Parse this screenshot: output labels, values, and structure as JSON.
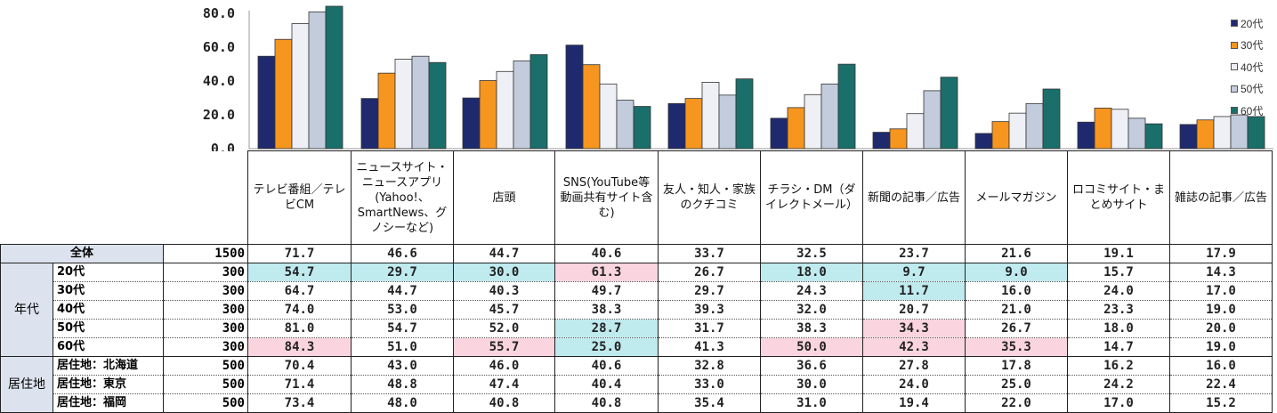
{
  "chart_data": {
    "type": "bar",
    "yticks": [
      "80.0",
      "60.0",
      "40.0",
      "20.0",
      "0.0"
    ],
    "ytick_values": [
      80,
      60,
      40,
      20,
      0
    ],
    "ylim": [
      0,
      88
    ],
    "categories": [
      "テレビ番組／テレビCM",
      "ニュースサイト・ニュースアプリ(Yahoo!、SmartNews、グノシーなど)",
      "店頭",
      "SNS(YouTube等動画共有サイト含む)",
      "友人・知人・家族のクチコミ",
      "チラシ・DM（ダイレクトメール）",
      "新聞の記事／広告",
      "メールマガジン",
      "ロコミサイト・まとめサイト",
      "雑誌の記事／広告"
    ],
    "series": [
      {
        "name": "20代",
        "color": "#1f2a6e",
        "values": [
          54.7,
          29.7,
          30.0,
          61.3,
          26.7,
          18.0,
          9.7,
          9.0,
          15.7,
          14.3
        ]
      },
      {
        "name": "30代",
        "color": "#f7961e",
        "values": [
          64.7,
          44.7,
          40.3,
          49.7,
          29.7,
          24.3,
          11.7,
          16.0,
          24.0,
          17.0
        ]
      },
      {
        "name": "40代",
        "color": "#eef0f6",
        "values": [
          74.0,
          53.0,
          45.7,
          38.3,
          39.3,
          32.0,
          20.7,
          21.0,
          23.3,
          19.0
        ]
      },
      {
        "name": "50代",
        "color": "#c2ccdc",
        "values": [
          81.0,
          54.7,
          52.0,
          28.7,
          31.7,
          38.3,
          34.3,
          26.7,
          18.0,
          20.0
        ]
      },
      {
        "name": "60代",
        "color": "#1b6f6a",
        "values": [
          84.3,
          51.0,
          55.7,
          25.0,
          41.3,
          50.0,
          42.3,
          35.3,
          14.7,
          19.0
        ]
      }
    ]
  },
  "table": {
    "columns": [
      "テレビ番組／テレビCM",
      "ニュースサイト・ニュースアプリ(Yahoo!、SmartNews、グノシーなど)",
      "店頭",
      "SNS(YouTube等動画共有サイト含む)",
      "友人・知人・家族のクチコミ",
      "チラシ・DM（ダイレクトメール）",
      "新聞の記事／広告",
      "メールマガジン",
      "ロコミサイト・まとめサイト",
      "雑誌の記事／広告"
    ],
    "total": {
      "label": "全体",
      "n": "1500",
      "values": [
        "71.7",
        "46.6",
        "44.7",
        "40.6",
        "33.7",
        "32.5",
        "23.7",
        "21.6",
        "19.1",
        "17.9"
      ]
    },
    "groups": [
      {
        "name": "年代",
        "rows": [
          {
            "label": "20代",
            "n": "300",
            "values": [
              "54.7",
              "29.7",
              "30.0",
              "61.3",
              "26.7",
              "18.0",
              "9.7",
              "9.0",
              "15.7",
              "14.3"
            ],
            "hl": [
              "blue",
              "blue",
              "blue",
              "pink",
              "",
              "blue",
              "blue",
              "blue",
              "",
              ""
            ]
          },
          {
            "label": "30代",
            "n": "300",
            "values": [
              "64.7",
              "44.7",
              "40.3",
              "49.7",
              "29.7",
              "24.3",
              "11.7",
              "16.0",
              "24.0",
              "17.0"
            ],
            "hl": [
              "",
              "",
              "",
              "",
              "",
              "",
              "blue",
              "",
              "",
              ""
            ]
          },
          {
            "label": "40代",
            "n": "300",
            "values": [
              "74.0",
              "53.0",
              "45.7",
              "38.3",
              "39.3",
              "32.0",
              "20.7",
              "21.0",
              "23.3",
              "19.0"
            ],
            "hl": [
              "",
              "",
              "",
              "",
              "",
              "",
              "",
              "",
              "",
              ""
            ]
          },
          {
            "label": "50代",
            "n": "300",
            "values": [
              "81.0",
              "54.7",
              "52.0",
              "28.7",
              "31.7",
              "38.3",
              "34.3",
              "26.7",
              "18.0",
              "20.0"
            ],
            "hl": [
              "",
              "",
              "",
              "blue",
              "",
              "",
              "pink",
              "",
              "",
              ""
            ]
          },
          {
            "label": "60代",
            "n": "300",
            "values": [
              "84.3",
              "51.0",
              "55.7",
              "25.0",
              "41.3",
              "50.0",
              "42.3",
              "35.3",
              "14.7",
              "19.0"
            ],
            "hl": [
              "pink",
              "",
              "pink",
              "blue",
              "",
              "pink",
              "pink",
              "pink",
              "",
              ""
            ]
          }
        ]
      },
      {
        "name": "居住地",
        "rows": [
          {
            "label": "居住地：北海道",
            "n": "500",
            "values": [
              "70.4",
              "43.0",
              "46.0",
              "40.6",
              "32.8",
              "36.6",
              "27.8",
              "17.8",
              "16.2",
              "16.0"
            ],
            "hl": [
              "",
              "",
              "",
              "",
              "",
              "",
              "",
              "",
              "",
              ""
            ]
          },
          {
            "label": "居住地：東京",
            "n": "500",
            "values": [
              "71.4",
              "48.8",
              "47.4",
              "40.4",
              "33.0",
              "30.0",
              "24.0",
              "25.0",
              "24.2",
              "22.4"
            ],
            "hl": [
              "",
              "",
              "",
              "",
              "",
              "",
              "",
              "",
              "",
              ""
            ]
          },
          {
            "label": "居住地：福岡",
            "n": "500",
            "values": [
              "73.4",
              "48.0",
              "40.8",
              "40.8",
              "35.4",
              "31.0",
              "19.4",
              "22.0",
              "17.0",
              "15.2"
            ],
            "hl": [
              "",
              "",
              "",
              "",
              "",
              "",
              "",
              "",
              "",
              ""
            ]
          }
        ]
      }
    ]
  }
}
